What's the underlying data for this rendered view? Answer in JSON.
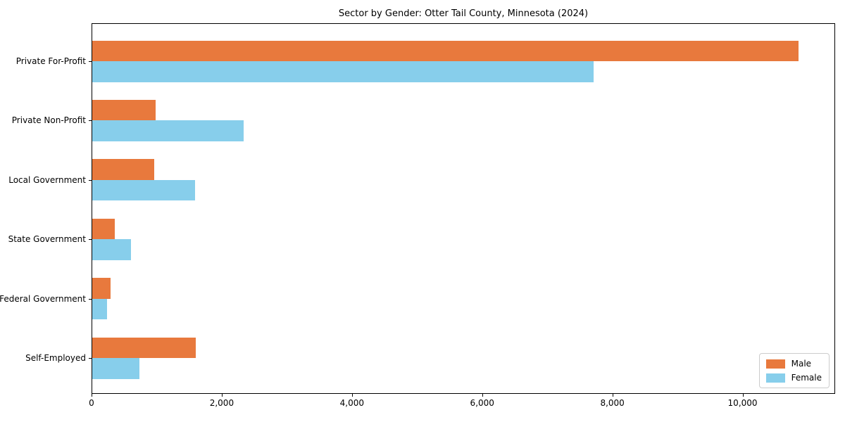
{
  "title": "Sector by Gender: Otter Tail County, Minnesota (2024)",
  "chart_data": {
    "type": "bar",
    "orientation": "horizontal",
    "title": "Sector by Gender: Otter Tail County, Minnesota (2024)",
    "xlabel": "",
    "ylabel": "",
    "categories": [
      "Private For-Profit",
      "Private Non-Profit",
      "Local Government",
      "State Government",
      "Federal Government",
      "Self-Employed"
    ],
    "series": [
      {
        "name": "Male",
        "color": "#e8793d",
        "values": [
          10850,
          970,
          950,
          350,
          280,
          1590
        ]
      },
      {
        "name": "Female",
        "color": "#87ceeb",
        "values": [
          7700,
          2330,
          1580,
          600,
          230,
          720
        ]
      }
    ],
    "xlim": [
      0,
      11400
    ],
    "x_ticks": [
      {
        "value": 0,
        "label": "0"
      },
      {
        "value": 2000,
        "label": "2,000"
      },
      {
        "value": 4000,
        "label": "4,000"
      },
      {
        "value": 6000,
        "label": "6,000"
      },
      {
        "value": 8000,
        "label": "8,000"
      },
      {
        "value": 10000,
        "label": "10,000"
      }
    ],
    "grid": false,
    "legend": {
      "position": "lower right",
      "entries": [
        "Male",
        "Female"
      ]
    }
  }
}
